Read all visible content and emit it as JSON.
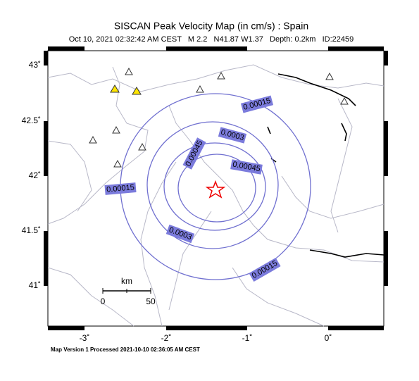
{
  "header": {
    "title": "SISCAN Peak Velocity Map (in cm/s) : Spain",
    "subtitle": "Oct 10, 2021 02:32:42 AM CEST   M 2.2   N41.87 W1.37   Depth: 0.2km   ID:22459"
  },
  "map": {
    "lat_labels": [
      "43˚",
      "42.5˚",
      "42˚",
      "41.5˚",
      "41˚"
    ],
    "lon_labels": [
      "-3˚",
      "-2˚",
      "-1˚",
      "0˚"
    ],
    "contour_labels": [
      "0.00015",
      "0.0003",
      "0.00045",
      "0.00045",
      "0.00015",
      "0.0003",
      "0.00015"
    ],
    "scale": {
      "unit": "km",
      "start": "0",
      "end": "50"
    }
  },
  "footer": "Map Version 1 Processed 2021-10-10 02:36:05 AM CEST"
}
